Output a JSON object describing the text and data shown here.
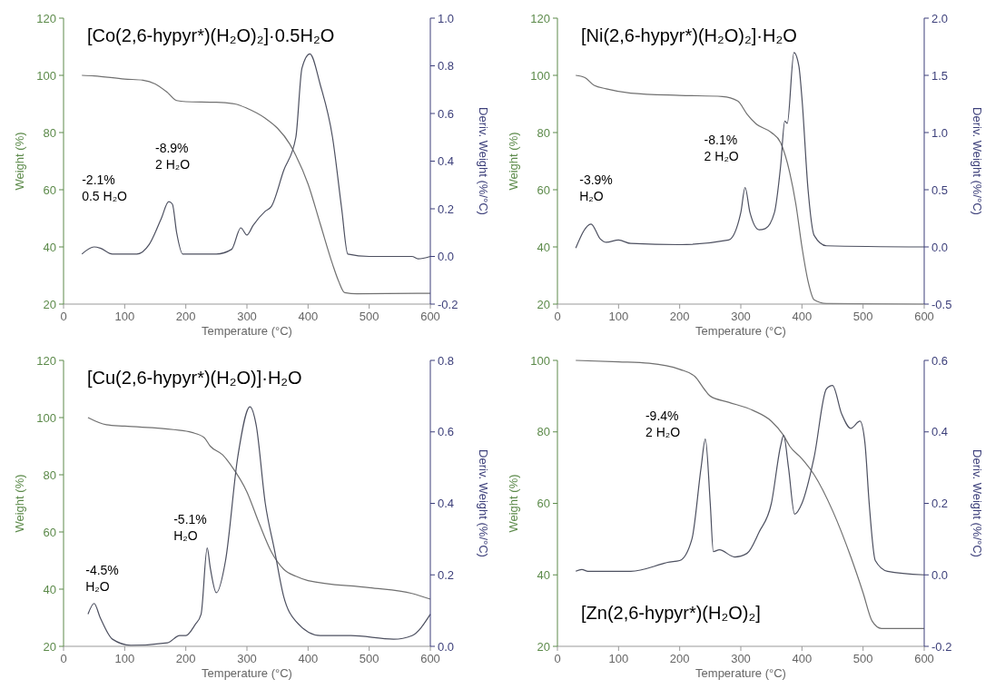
{
  "chart_data": [
    {
      "type": "line",
      "title": "[Co(2,6-hypyr*)(H₂O)₂]·0.5H₂O",
      "xlabel": "Temperature (°C)",
      "ylabel": "Weight (%)",
      "y2label": "Deriv. Weight (%/°C)",
      "xlim": [
        0,
        600
      ],
      "xticks": [
        0,
        100,
        200,
        300,
        400,
        500,
        600
      ],
      "ylim": [
        20,
        120
      ],
      "yticks": [
        20,
        40,
        60,
        80,
        100,
        120
      ],
      "y2lim": [
        -0.2,
        1.0
      ],
      "y2ticks": [
        -0.2,
        {
          "value": 0,
          "label": "0.0"
        },
        0.2,
        0.4,
        0.6,
        0.8,
        {
          "value": 1,
          "label": "1.0"
        }
      ],
      "grid": false,
      "annotations": [
        "-2.1%\n0.5 H₂O",
        "-8.9%\n2 H₂O"
      ],
      "series": [
        {
          "type": "line",
          "color": "#707070",
          "x": [
            30,
            50,
            100,
            130,
            150,
            170,
            185,
            200,
            250,
            280,
            300,
            330,
            350,
            370,
            380,
            400,
            420,
            440,
            450,
            460,
            480,
            600
          ],
          "values": [
            100,
            99.8,
            98.7,
            98.3,
            97,
            94,
            91.2,
            90.8,
            90.6,
            90,
            88.5,
            85,
            81.5,
            76,
            72,
            62,
            48,
            34,
            28,
            24,
            23.6,
            23.8
          ]
        },
        {
          "type": "line",
          "axis": "y2",
          "color": "#4d5060",
          "x": [
            30,
            50,
            60,
            80,
            120,
            140,
            160,
            172,
            178,
            185,
            195,
            250,
            275,
            290,
            300,
            310,
            330,
            340,
            360,
            380,
            390,
            403,
            420,
            440,
            455,
            465,
            500,
            570,
            580,
            600
          ],
          "values": [
            0.01,
            0.04,
            0.035,
            0.01,
            0.01,
            0.05,
            0.16,
            0.23,
            0.22,
            0.1,
            0.01,
            0.01,
            0.03,
            0.12,
            0.09,
            0.13,
            0.19,
            0.21,
            0.36,
            0.5,
            0.79,
            0.85,
            0.72,
            0.5,
            0.2,
            0.01,
            0.0,
            0.0,
            -0.01,
            0.0
          ]
        }
      ]
    },
    {
      "type": "line",
      "title": "[Ni(2,6-hypyr*)(H₂O)₂]·H₂O",
      "xlabel": "Temperature (°C)",
      "ylabel": "Weight (%)",
      "y2label": "Deriv. Weight (%/°C)",
      "xlim": [
        0,
        600
      ],
      "xticks": [
        0,
        100,
        200,
        300,
        400,
        500,
        600
      ],
      "ylim": [
        20,
        120
      ],
      "yticks": [
        20,
        40,
        60,
        80,
        100,
        120
      ],
      "y2lim": [
        -0.5,
        2.0
      ],
      "y2ticks": [
        -0.5,
        {
          "value": 0,
          "label": "0.0"
        },
        0.5,
        {
          "value": 1,
          "label": "1.0"
        },
        1.5,
        {
          "value": 2,
          "label": "2.0"
        }
      ],
      "grid": false,
      "annotations": [
        "-3.9%\nH₂O",
        "-8.1%\n2 H₂O"
      ],
      "series": [
        {
          "type": "line",
          "color": "#707070",
          "x": [
            30,
            45,
            60,
            80,
            120,
            200,
            270,
            295,
            310,
            325,
            350,
            365,
            380,
            390,
            400,
            410,
            420,
            440,
            600
          ],
          "values": [
            100,
            99.2,
            96.5,
            95.3,
            93.8,
            93,
            92.6,
            91,
            86.5,
            83,
            80,
            76.5,
            66,
            55,
            40,
            28,
            21.5,
            20.2,
            20
          ]
        },
        {
          "type": "line",
          "axis": "y2",
          "color": "#4d5060",
          "x": [
            30,
            55,
            70,
            80,
            100,
            120,
            200,
            280,
            300,
            307,
            315,
            330,
            340,
            355,
            365,
            372,
            376,
            387,
            395,
            400,
            410,
            420,
            440,
            600
          ],
          "values": [
            -0.01,
            0.2,
            0.07,
            0.04,
            0.06,
            0.03,
            0.02,
            0.06,
            0.3,
            0.52,
            0.3,
            0.15,
            0.16,
            0.3,
            0.7,
            1.1,
            1.08,
            1.7,
            1.58,
            1.3,
            0.5,
            0.1,
            0.01,
            0.0
          ]
        }
      ]
    },
    {
      "type": "line",
      "title": "[Cu(2,6-hypyr*)(H₂O)]·H₂O",
      "xlabel": "Temperature (°C)",
      "ylabel": "Weight (%)",
      "y2label": "Deriv. Weight (%/°C)",
      "xlim": [
        0,
        600
      ],
      "xticks": [
        0,
        100,
        200,
        300,
        400,
        500,
        600
      ],
      "ylim": [
        20,
        120
      ],
      "yticks": [
        20,
        40,
        60,
        80,
        100,
        120
      ],
      "y2lim": [
        0,
        0.8
      ],
      "y2ticks": [
        {
          "value": 0,
          "label": "0.0"
        },
        0.2,
        0.4,
        0.6,
        0.8
      ],
      "grid": false,
      "annotations": [
        "-4.5%\nH₂O",
        "-5.1%\nH₂O"
      ],
      "series": [
        {
          "type": "line",
          "color": "#707070",
          "x": [
            40,
            70,
            100,
            180,
            210,
            230,
            240,
            260,
            275,
            300,
            320,
            340,
            360,
            380,
            400,
            500,
            570,
            600
          ],
          "values": [
            100,
            97.5,
            97,
            95.8,
            94.8,
            93,
            90,
            87,
            83,
            74,
            63,
            53,
            47,
            44.5,
            43,
            40.5,
            38.5,
            36.5
          ]
        },
        {
          "type": "line",
          "axis": "y2",
          "color": "#4d5060",
          "x": [
            40,
            50,
            60,
            80,
            110,
            170,
            190,
            200,
            215,
            225,
            235,
            240,
            250,
            265,
            285,
            305,
            315,
            330,
            345,
            360,
            380,
            420,
            470,
            540,
            570,
            600
          ],
          "values": [
            0.09,
            0.12,
            0.08,
            0.02,
            0.003,
            0.01,
            0.03,
            0.03,
            0.06,
            0.09,
            0.275,
            0.22,
            0.15,
            0.24,
            0.53,
            0.67,
            0.62,
            0.4,
            0.27,
            0.14,
            0.07,
            0.03,
            0.03,
            0.02,
            0.03,
            0.09
          ]
        }
      ]
    },
    {
      "type": "line",
      "title": "[Zn(2,6-hypyr*)(H₂O)₂]",
      "xlabel": "Temperature (°C)",
      "ylabel": "Weight (%)",
      "y2label": "Deriv. Weight (%/°C)",
      "xlim": [
        0,
        600
      ],
      "xticks": [
        0,
        100,
        200,
        300,
        400,
        500,
        600
      ],
      "ylim": [
        20,
        100
      ],
      "yticks": [
        20,
        40,
        60,
        80,
        100
      ],
      "y2lim": [
        -0.2,
        0.6
      ],
      "y2ticks": [
        -0.2,
        {
          "value": 0,
          "label": "0.0"
        },
        0.2,
        0.4,
        0.6
      ],
      "grid": false,
      "annotations": [
        "-9.4%\n2 H₂O"
      ],
      "series": [
        {
          "type": "line",
          "color": "#707070",
          "x": [
            30,
            100,
            150,
            200,
            225,
            240,
            250,
            280,
            320,
            350,
            370,
            380,
            400,
            420,
            450,
            480,
            500,
            515,
            530,
            600
          ],
          "values": [
            100,
            99.6,
            99.2,
            97.5,
            95.5,
            92,
            90,
            88.3,
            86,
            83,
            79,
            76,
            72.5,
            68,
            58,
            45,
            35,
            27,
            25,
            25
          ]
        },
        {
          "type": "line",
          "axis": "y2",
          "color": "#4d5060",
          "x": [
            30,
            40,
            50,
            120,
            170,
            180,
            200,
            220,
            235,
            242,
            250,
            255,
            265,
            290,
            310,
            330,
            350,
            365,
            370,
            378,
            388,
            400,
            420,
            440,
            450,
            465,
            480,
            495,
            503,
            510,
            520,
            540,
            600
          ],
          "values": [
            0.01,
            0.015,
            0.01,
            0.01,
            0.03,
            0.035,
            0.04,
            0.1,
            0.3,
            0.38,
            0.2,
            0.065,
            0.07,
            0.05,
            0.06,
            0.12,
            0.2,
            0.36,
            0.39,
            0.3,
            0.17,
            0.2,
            0.33,
            0.52,
            0.53,
            0.45,
            0.41,
            0.43,
            0.37,
            0.2,
            0.04,
            0.01,
            0.0
          ]
        }
      ]
    }
  ]
}
